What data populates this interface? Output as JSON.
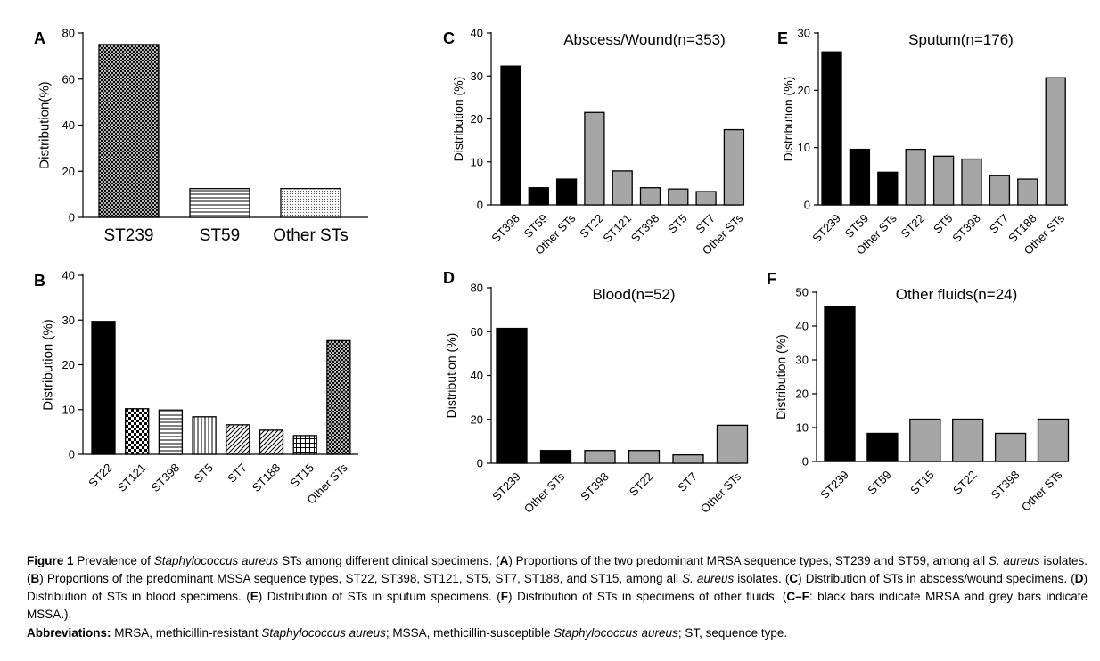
{
  "figure_label": "Figure 1",
  "colors": {
    "black": "#000000",
    "grey": "#a6a6a6",
    "white": "#ffffff"
  },
  "chart_data": [
    {
      "panel": "A",
      "type": "bar",
      "title": "",
      "ylabel": "Distribution(%)",
      "xlabel": "",
      "ylim": [
        0,
        80
      ],
      "yticks": [
        0,
        20,
        40,
        60,
        80
      ],
      "categories": [
        "ST239",
        "ST59",
        "Other STs"
      ],
      "values": [
        75,
        12.5,
        12.5
      ],
      "fills": [
        "crosshatch",
        "hlines",
        "dots"
      ]
    },
    {
      "panel": "B",
      "type": "bar",
      "title": "",
      "ylabel": "Distribution (%)",
      "xlabel": "",
      "ylim": [
        0,
        40
      ],
      "yticks": [
        0,
        10,
        20,
        30,
        40
      ],
      "categories": [
        "ST22",
        "ST121",
        "ST398",
        "ST5",
        "ST7",
        "ST188",
        "ST15",
        "Other STs"
      ],
      "values": [
        29.7,
        10.2,
        9.9,
        8.4,
        6.6,
        5.4,
        4.2,
        25.4
      ],
      "fills": [
        "black",
        "checker",
        "hlines",
        "vlines",
        "diag",
        "diag",
        "grid",
        "crosshatch"
      ]
    },
    {
      "panel": "C",
      "type": "bar",
      "title": "Abscess/Wound(n=353)",
      "ylabel": "Distribution (%)",
      "xlabel": "",
      "ylim": [
        0,
        40
      ],
      "yticks": [
        0,
        10,
        20,
        30,
        40
      ],
      "categories": [
        "ST398",
        "ST59",
        "Other STs",
        "ST22",
        "ST121",
        "ST398",
        "ST5",
        "ST7",
        "Other STs"
      ],
      "values": [
        32.3,
        4.0,
        6.0,
        21.5,
        7.9,
        4.0,
        3.7,
        3.1,
        17.5
      ],
      "fills": [
        "black",
        "black",
        "black",
        "grey",
        "grey",
        "grey",
        "grey",
        "grey",
        "grey"
      ]
    },
    {
      "panel": "D",
      "type": "bar",
      "title": "Blood(n=52)",
      "ylabel": "Distribution (%)",
      "xlabel": "",
      "ylim": [
        0,
        80
      ],
      "yticks": [
        0,
        20,
        40,
        60,
        80
      ],
      "categories": [
        "ST239",
        "Other STs",
        "ST398",
        "ST22",
        "ST7",
        "Other STs"
      ],
      "values": [
        61.5,
        5.8,
        5.8,
        5.8,
        3.8,
        17.3
      ],
      "fills": [
        "black",
        "black",
        "grey",
        "grey",
        "grey",
        "grey"
      ]
    },
    {
      "panel": "E",
      "type": "bar",
      "title": "Sputum(n=176)",
      "ylabel": "Distribution (%)",
      "xlabel": "",
      "ylim": [
        0,
        30
      ],
      "yticks": [
        0,
        10,
        20,
        30
      ],
      "categories": [
        "ST239",
        "ST59",
        "Other STs",
        "ST22",
        "ST5",
        "ST398",
        "ST7",
        "ST188",
        "Other STs"
      ],
      "values": [
        26.7,
        9.7,
        5.7,
        9.7,
        8.5,
        8.0,
        5.1,
        4.5,
        22.2
      ],
      "fills": [
        "black",
        "black",
        "black",
        "grey",
        "grey",
        "grey",
        "grey",
        "grey",
        "grey"
      ]
    },
    {
      "panel": "F",
      "type": "bar",
      "title": "Other fluids(n=24)",
      "ylabel": "Distribution (%)",
      "xlabel": "",
      "ylim": [
        0,
        50
      ],
      "yticks": [
        0,
        10,
        20,
        30,
        40,
        50
      ],
      "categories": [
        "ST239",
        "ST59",
        "ST15",
        "ST22",
        "ST398",
        "Other STs"
      ],
      "values": [
        45.8,
        8.3,
        12.5,
        12.5,
        8.3,
        12.5
      ],
      "fills": [
        "black",
        "black",
        "grey",
        "grey",
        "grey",
        "grey"
      ]
    }
  ],
  "caption": {
    "fig_label": "Figure 1",
    "s1": " Prevalence of ",
    "s2": "Staphylococcus aureus",
    "s3": " STs among different clinical specimens. (",
    "lA": "A",
    "s4": ") Proportions of the two predominant MRSA sequence types, ST239 and ST59, among all ",
    "s5": "S. aureus",
    "s6": " isolates. (",
    "lB": "B",
    "s7": ") Proportions of the predominant MSSA sequence types, ST22, ST398, ST121, ST5, ST7, ST188, and ST15, among all ",
    "s8": "S. aureus",
    "s9": " isolates. (",
    "lC": "C",
    "s10": ") Distribution of STs in abscess/wound specimens. (",
    "lD": "D",
    "s11": ") Distribution of STs in blood specimens. (",
    "lE": "E",
    "s12": ") Distribution of STs in sputum specimens. (",
    "lF": "F",
    "s13": ") Distribution of STs in specimens of other fluids. (",
    "lCF": "C–F",
    "s14": ": black bars indicate MRSA and grey bars indicate MSSA.).",
    "abbr_label": "Abbreviations:",
    "a1": " MRSA, methicillin-resistant ",
    "a2": "Staphylococcus aureus",
    "a3": "; MSSA, methicillin-susceptible ",
    "a4": "Staphylococcus aureus",
    "a5": "; ST, sequence type."
  }
}
